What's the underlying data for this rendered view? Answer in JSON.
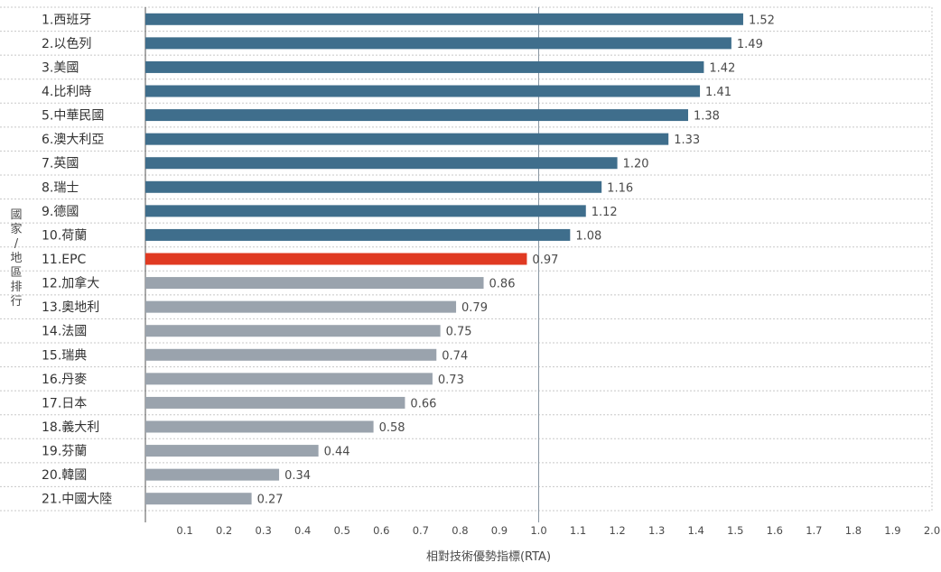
{
  "chart_data": {
    "type": "bar",
    "orientation": "horizontal",
    "xlabel": "相對技術優勢指標(RTA)",
    "ylabel": "國家/地區排行",
    "xlim": [
      0,
      2.0
    ],
    "xticks": [
      "0.1",
      "0.2",
      "0.3",
      "0.4",
      "0.5",
      "0.6",
      "0.7",
      "0.8",
      "0.9",
      "1.0",
      "1.1",
      "1.2",
      "1.3",
      "1.4",
      "1.5",
      "1.6",
      "1.7",
      "1.8",
      "1.9",
      "2.0"
    ],
    "reference_line": 1.0,
    "grid": "dotted",
    "categories": [
      "1.西班牙",
      "2.以色列",
      "3.美國",
      "4.比利時",
      "5.中華民國",
      "6.澳大利亞",
      "7.英國",
      "8.瑞士",
      "9.德國",
      "10.荷蘭",
      "11.EPC",
      "12.加拿大",
      "13.奧地利",
      "14.法國",
      "15.瑞典",
      "16.丹麥",
      "17.日本",
      "18.義大利",
      "19.芬蘭",
      "20.韓國",
      "21.中國大陸"
    ],
    "values": [
      1.52,
      1.49,
      1.42,
      1.41,
      1.38,
      1.33,
      1.2,
      1.16,
      1.12,
      1.08,
      0.97,
      0.86,
      0.79,
      0.75,
      0.74,
      0.73,
      0.66,
      0.58,
      0.44,
      0.34,
      0.27
    ],
    "value_labels": [
      "1.52",
      "1.49",
      "1.42",
      "1.41",
      "1.38",
      "1.33",
      "1.20",
      "1.16",
      "1.12",
      "1.08",
      "0.97",
      "0.86",
      "0.79",
      "0.75",
      "0.74",
      "0.73",
      "0.66",
      "0.58",
      "0.44",
      "0.34",
      "0.27"
    ],
    "bar_colors": {
      "above_one": "#3f6e8c",
      "highlight": "#e03a22",
      "below_one": "#9aa3ad"
    },
    "highlight_category": "11.EPC"
  }
}
